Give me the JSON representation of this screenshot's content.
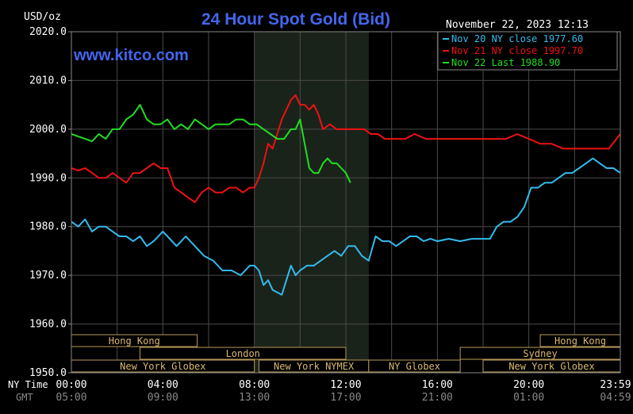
{
  "chart_data": {
    "type": "line",
    "title": "24 Hour Spot Gold (Bid)",
    "unit_label": "USD/oz",
    "site": "www.kitco.com",
    "timestamp": "November 22, 2023 12:13",
    "ylim": [
      1950,
      2020
    ],
    "y_ticks": [
      "2020.0",
      "2010.0",
      "2000.0",
      "1990.0",
      "1980.0",
      "1970.0",
      "1960.0",
      "1950.0"
    ],
    "x_row_labels": {
      "ny": "NY Time",
      "gmt": "GMT"
    },
    "x_ticks_ny": [
      "00:00",
      "04:00",
      "08:00",
      "12:00",
      "16:00",
      "20:00",
      "23:59"
    ],
    "x_ticks_gmt": [
      "05:00",
      "09:00",
      "13:00",
      "17:00",
      "21:00",
      "01:00",
      "04:59"
    ],
    "grid": true,
    "legend_position": "top-right",
    "shaded_session_hours": [
      8,
      13
    ],
    "series": [
      {
        "name": "Nov 20 NY close 1977.60",
        "color": "#33bbee",
        "x": [
          0,
          0.3,
          0.6,
          0.9,
          1.2,
          1.5,
          1.8,
          2.1,
          2.4,
          2.7,
          3.0,
          3.3,
          3.6,
          4.0,
          4.2,
          4.6,
          5.0,
          5.4,
          5.8,
          6.2,
          6.6,
          7.0,
          7.4,
          7.8,
          8.0,
          8.2,
          8.4,
          8.6,
          8.8,
          9.0,
          9.2,
          9.4,
          9.6,
          9.8,
          10.0,
          10.3,
          10.6,
          10.9,
          11.2,
          11.5,
          11.8,
          12.1,
          12.4,
          12.7,
          13.0,
          13.3,
          13.6,
          13.9,
          14.2,
          14.5,
          14.8,
          15.1,
          15.4,
          15.7,
          16.0,
          16.5,
          17.0,
          17.5,
          18.0,
          18.3,
          18.6,
          18.9,
          19.2,
          19.5,
          19.8,
          20.1,
          20.4,
          20.7,
          21.0,
          21.3,
          21.6,
          21.9,
          22.2,
          22.5,
          22.8,
          23.1,
          23.4,
          23.7,
          24.0
        ],
        "values": [
          1981,
          1980,
          1981.5,
          1979,
          1980,
          1980,
          1979,
          1978,
          1978,
          1977,
          1978,
          1976,
          1977,
          1979,
          1978,
          1976,
          1978,
          1976,
          1974,
          1973,
          1971,
          1971,
          1970,
          1972,
          1972,
          1971,
          1968,
          1969,
          1967,
          1966.5,
          1966,
          1969,
          1972,
          1970,
          1971,
          1972,
          1972,
          1973,
          1974,
          1975,
          1974,
          1976,
          1976,
          1974,
          1973,
          1978,
          1977,
          1977,
          1976,
          1977,
          1978,
          1978,
          1977,
          1977.5,
          1977,
          1977.5,
          1977,
          1977.5,
          1977.5,
          1977.5,
          1980,
          1981,
          1981,
          1982,
          1984,
          1988,
          1988,
          1989,
          1989,
          1990,
          1991,
          1991,
          1992,
          1993,
          1994,
          1993,
          1992,
          1992,
          1991
        ]
      },
      {
        "name": "Nov 21 NY close 1997.70",
        "color": "#ee1111",
        "x": [
          0,
          0.3,
          0.6,
          0.9,
          1.2,
          1.5,
          1.8,
          2.1,
          2.4,
          2.7,
          3.0,
          3.3,
          3.6,
          3.9,
          4.2,
          4.5,
          4.8,
          5.1,
          5.4,
          5.7,
          6.0,
          6.3,
          6.6,
          6.9,
          7.2,
          7.5,
          7.8,
          8.0,
          8.2,
          8.4,
          8.6,
          8.8,
          9.0,
          9.2,
          9.4,
          9.6,
          9.8,
          10.0,
          10.2,
          10.4,
          10.6,
          10.8,
          11.0,
          11.3,
          11.6,
          11.9,
          12.2,
          12.5,
          12.8,
          13.1,
          13.4,
          13.7,
          14.0,
          14.3,
          14.6,
          15.0,
          15.5,
          16.0,
          16.5,
          17.0,
          17.5,
          18.0,
          18.5,
          19.0,
          19.5,
          20.0,
          20.5,
          21.0,
          21.5,
          22.0,
          22.5,
          23.0,
          23.5,
          24.0
        ],
        "values": [
          1992,
          1991.5,
          1992,
          1991,
          1990,
          1990,
          1991,
          1990,
          1989,
          1991,
          1991,
          1992,
          1993,
          1992,
          1992,
          1988,
          1987,
          1986,
          1985,
          1987,
          1988,
          1987,
          1987,
          1988,
          1988,
          1987,
          1988,
          1988,
          1990,
          1993,
          1997,
          1996,
          1999,
          2002,
          2004,
          2006,
          2007,
          2005,
          2005,
          2004,
          2005,
          2003,
          2000,
          2001,
          2000,
          2000,
          2000,
          2000,
          2000,
          1999,
          1999,
          1998,
          1998,
          1998,
          1998,
          1999,
          1998,
          1998,
          1998,
          1998,
          1998,
          1998,
          1998,
          1998,
          1999,
          1998,
          1997,
          1997,
          1996,
          1996,
          1996,
          1996,
          1996,
          1999
        ]
      },
      {
        "name": "Nov 22 Last 1988.90",
        "color": "#22dd22",
        "x": [
          0,
          0.3,
          0.6,
          0.9,
          1.2,
          1.5,
          1.8,
          2.1,
          2.4,
          2.7,
          3.0,
          3.3,
          3.6,
          3.9,
          4.2,
          4.5,
          4.8,
          5.1,
          5.4,
          5.7,
          6.0,
          6.3,
          6.6,
          6.9,
          7.2,
          7.5,
          7.8,
          8.1,
          8.4,
          8.7,
          9.0,
          9.3,
          9.6,
          9.8,
          10.0,
          10.2,
          10.4,
          10.6,
          10.8,
          11.0,
          11.2,
          11.4,
          11.6,
          11.8,
          12.0,
          12.2
        ],
        "values": [
          1999,
          1998.5,
          1998,
          1997.5,
          1999,
          1998,
          2000,
          2000,
          2002,
          2003,
          2005,
          2002,
          2001,
          2001,
          2002,
          2000,
          2001,
          2000,
          2002,
          2001,
          2000,
          2001,
          2001,
          2001,
          2002,
          2002,
          2001,
          2001,
          2000,
          1999,
          1998,
          1998,
          2000,
          2000,
          2002,
          1997,
          1992,
          1991,
          1991,
          1993,
          1994,
          1993,
          1993,
          1992,
          1991,
          1989
        ]
      }
    ],
    "sessions": [
      {
        "name": "Hong Kong",
        "row": 0,
        "start": 0,
        "end": 5.5
      },
      {
        "name": "Hong Kong",
        "row": 0,
        "start": 20.5,
        "end": 24
      },
      {
        "name": "London",
        "row": 1,
        "start": 3,
        "end": 12
      },
      {
        "name": "Sydney",
        "row": 1,
        "start": 17,
        "end": 24
      },
      {
        "name": "New York Globex",
        "row": 2,
        "start": 0,
        "end": 8
      },
      {
        "name": "New York NYMEX",
        "row": 2,
        "start": 8.2,
        "end": 13
      },
      {
        "name": "NY Globex",
        "row": 2,
        "start": 13,
        "end": 17
      },
      {
        "name": "New York Globex",
        "row": 2,
        "start": 18,
        "end": 24
      }
    ]
  }
}
